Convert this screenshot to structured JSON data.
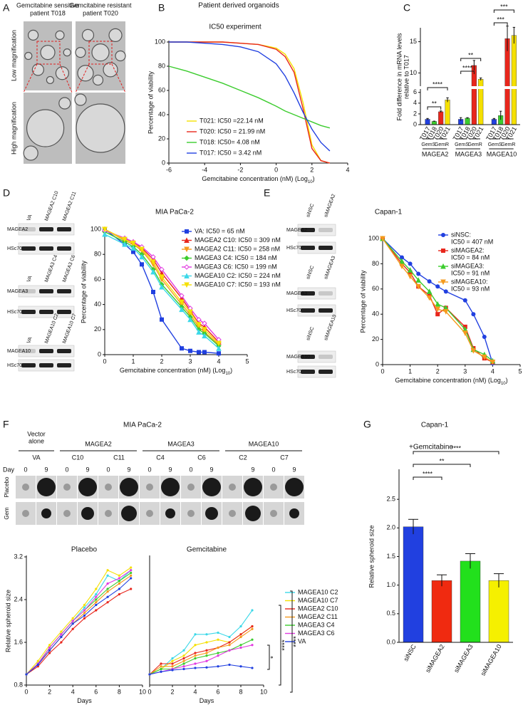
{
  "figure": {
    "panels": [
      "A",
      "B",
      "C",
      "D",
      "E",
      "F",
      "G"
    ],
    "A": {
      "headers": [
        [
          "Gemcitabine sensitive",
          "patient T018"
        ],
        [
          "Gemcitabine resistant",
          "patient T020"
        ]
      ],
      "rows": [
        "Low magnification",
        "High magnification"
      ]
    },
    "B": {
      "title": "Patient derived organoids"
    },
    "D": {
      "blots": [
        {
          "lanes": [
            "VA",
            "MAGEA2 C10",
            "MAGEA2 C11"
          ],
          "bands": [
            "MAGEA2",
            "HSc70"
          ]
        },
        {
          "lanes": [
            "VA",
            "MAGEA3 C4",
            "MAGEA3 C6"
          ],
          "bands": [
            "MAGEA3",
            "HSc70"
          ]
        },
        {
          "lanes": [
            "VA",
            "MAGEA10 C2",
            "MAGEA10 C7"
          ],
          "bands": [
            "MAGEA10",
            "HSc70"
          ]
        }
      ]
    },
    "E": {
      "blots": [
        {
          "lanes": [
            "siNSC",
            "siMAGEA2"
          ],
          "bands": [
            "MAGEA2",
            "HSc70"
          ]
        },
        {
          "lanes": [
            "siNSC",
            "siMAGEA3"
          ],
          "bands": [
            "MAGEA3",
            "HSc70"
          ]
        },
        {
          "lanes": [
            "siNSC",
            "siMAGEA10"
          ],
          "bands": [
            "MAGEA10",
            "HSc70"
          ]
        }
      ]
    },
    "F": {
      "title": "MIA PaCa-2",
      "vector_header": [
        "Vector",
        "alone"
      ],
      "groups": [
        "MAGEA2",
        "MAGEA3",
        "MAGEA10"
      ],
      "clones": [
        "VA",
        "C10",
        "C11",
        "C4",
        "C6",
        "C2",
        "C7"
      ],
      "day_label": "Day",
      "days": [
        "0",
        "9"
      ],
      "rows": [
        "Placebo",
        "Gem"
      ],
      "significance": [
        "*",
        "****",
        "****"
      ]
    }
  },
  "chart_data": [
    {
      "type": "line",
      "title": "IC50 experiment",
      "xlabel": "Gemcitabine concentration (nM) (Log",
      "xlabel_sub": "10",
      "xlabel_end": ")",
      "ylabel": "Percentage of viability",
      "x": [
        -6,
        -5,
        -4,
        -3,
        -2,
        -1,
        0,
        0.5,
        1,
        1.5,
        2,
        2.5,
        3
      ],
      "xlim": [
        -6,
        4
      ],
      "xticks": [
        -6,
        -4,
        -2,
        0,
        2,
        4
      ],
      "ylim": [
        0,
        100
      ],
      "yticks": [
        0,
        20,
        40,
        60,
        80,
        100
      ],
      "series": [
        {
          "name": "T021: IC50 =22.14 nM",
          "color": "#f5e000",
          "values": [
            100,
            100,
            100,
            100,
            99,
            98,
            95,
            90,
            78,
            50,
            15,
            2,
            0
          ]
        },
        {
          "name": "T020: IC50 = 21.99 nM",
          "color": "#e8261c",
          "values": [
            100,
            100,
            100,
            100,
            99,
            98,
            94,
            88,
            75,
            45,
            12,
            2,
            0
          ]
        },
        {
          "name": "T018: IC50= 4.08 nM",
          "color": "#3ccc2e",
          "values": [
            80,
            76,
            71,
            66,
            60,
            54,
            47,
            43,
            40,
            37,
            34,
            31,
            29
          ]
        },
        {
          "name": "T017: IC50 = 3.42 nM",
          "color": "#2140e0",
          "values": [
            100,
            100,
            99,
            98,
            96,
            92,
            82,
            72,
            58,
            42,
            28,
            17,
            10
          ]
        }
      ]
    },
    {
      "type": "bar",
      "ylabel": [
        "Fold difference in mRNA levels",
        "relative to T017"
      ],
      "groups": [
        "MAGEA2",
        "MAGEA3",
        "MAGEA10"
      ],
      "categories": [
        "T017",
        "T018",
        "T020",
        "T021"
      ],
      "subgroups": [
        "GemS",
        "GemR"
      ],
      "colors": [
        "#2140e0",
        "#3ccc2e",
        "#e8261c",
        "#f5e000"
      ],
      "values": [
        [
          1.0,
          0.6,
          2.4,
          4.6
        ],
        [
          1.0,
          1.2,
          11.2,
          9.0
        ],
        [
          1.0,
          1.7,
          15.5,
          16.0
        ]
      ],
      "errors": [
        [
          0.15,
          0.05,
          0.15,
          0.4
        ],
        [
          0.3,
          0.1,
          0.8,
          0.2
        ],
        [
          0.15,
          0.8,
          2.0,
          1.3
        ]
      ],
      "ylim": [
        0,
        17
      ],
      "ybreak": [
        6.5,
        8
      ],
      "yticks": [
        0,
        2,
        4,
        6,
        10,
        15
      ],
      "annotations": [
        "**",
        "****",
        "**",
        "****",
        "***",
        "***"
      ]
    },
    {
      "type": "line",
      "title": "MIA PaCa-2",
      "xlabel": "Gemcitabine concentration (nM) (Log",
      "xlabel_sub": "10",
      "xlabel_end": ")",
      "ylabel": "Percentage of viability",
      "x": [
        0,
        0.7,
        1,
        1.3,
        1.7,
        2,
        2.7,
        3,
        3.3,
        3.5,
        4
      ],
      "xlim": [
        0,
        5
      ],
      "xticks": [
        0,
        1,
        2,
        3,
        4,
        5
      ],
      "ylim": [
        0,
        100
      ],
      "yticks": [
        0,
        20,
        40,
        60,
        80,
        100
      ],
      "series": [
        {
          "name": "VA: IC50 = 65 nM",
          "color": "#2140e0",
          "marker": "square",
          "values": [
            100,
            88,
            82,
            72,
            50,
            28,
            5,
            3,
            2,
            2,
            1
          ]
        },
        {
          "name": "MAGEA2 C10: IC50 = 309 nM",
          "color": "#e8261c",
          "marker": "triangle",
          "values": [
            100,
            92,
            90,
            85,
            76,
            65,
            45,
            35,
            25,
            22,
            10
          ]
        },
        {
          "name": "MAGEA2 C11: IC50 = 258 nM",
          "color": "#f59a1c",
          "marker": "triangle-down",
          "values": [
            100,
            91,
            88,
            83,
            72,
            60,
            40,
            32,
            22,
            18,
            8
          ]
        },
        {
          "name": "MAGEA3 C4: IC50 = 184 nM",
          "color": "#3ccc2e",
          "marker": "diamond",
          "values": [
            98,
            90,
            86,
            80,
            68,
            56,
            38,
            30,
            20,
            17,
            7
          ]
        },
        {
          "name": "MAGEA3 C6: IC50 = 199 nM",
          "color": "#e23be0",
          "marker": "diamond-open",
          "values": [
            99,
            93,
            90,
            86,
            78,
            68,
            47,
            37,
            28,
            25,
            12
          ]
        },
        {
          "name": "MAGEA10 C2: IC50 = 224 nM",
          "color": "#3cd8e8",
          "marker": "triangle",
          "values": [
            96,
            88,
            85,
            78,
            66,
            54,
            36,
            28,
            18,
            15,
            5
          ]
        },
        {
          "name": "MAGEA10 C7: IC50 = 193 nM",
          "color": "#f5e000",
          "marker": "triangle-down",
          "values": [
            100,
            92,
            89,
            84,
            74,
            62,
            42,
            34,
            24,
            20,
            9
          ]
        }
      ]
    },
    {
      "type": "line",
      "title": "Capan-1",
      "xlabel": "Gemcitabine concentration (nM) (Log",
      "xlabel_sub": "10",
      "xlabel_end": ")",
      "ylabel": "Percentage of viability",
      "x": [
        0,
        0.7,
        1,
        1.3,
        1.7,
        2,
        2.3,
        3,
        3.3,
        3.7,
        4
      ],
      "xlim": [
        0,
        5
      ],
      "xticks": [
        0,
        1,
        2,
        3,
        4,
        5
      ],
      "ylim": [
        0,
        100
      ],
      "yticks": [
        0,
        20,
        40,
        60,
        80,
        100
      ],
      "series": [
        {
          "name": [
            "siNSC:",
            "IC50 = 407 nM"
          ],
          "color": "#2140e0",
          "marker": "circle",
          "values": [
            100,
            85,
            80,
            72,
            66,
            62,
            58,
            51,
            40,
            22,
            1
          ]
        },
        {
          "name": [
            "siMAGEA2:",
            "IC50 = 84 nM"
          ],
          "color": "#e8261c",
          "marker": "square",
          "values": [
            100,
            80,
            73,
            62,
            55,
            40,
            45,
            30,
            13,
            5,
            2
          ]
        },
        {
          "name": [
            "siMAGEA3:",
            "IC50 = 91 nM"
          ],
          "color": "#3ccc2e",
          "marker": "triangle",
          "values": [
            100,
            82,
            75,
            67,
            58,
            48,
            45,
            28,
            12,
            8,
            3
          ]
        },
        {
          "name": [
            "siMAGEA10:",
            "IC50 = 93 nM"
          ],
          "color": "#f59a1c",
          "marker": "triangle-down",
          "values": [
            100,
            78,
            70,
            62,
            53,
            44,
            42,
            25,
            11,
            6,
            2
          ]
        }
      ]
    },
    {
      "type": "line",
      "title": "Placebo",
      "xlabel": "Days",
      "ylabel": "Relative spheroid size",
      "x": [
        0,
        1,
        2,
        3,
        4,
        5,
        6,
        7,
        8,
        9
      ],
      "xlim": [
        0,
        10
      ],
      "xticks": [
        0,
        2,
        4,
        6,
        8,
        10
      ],
      "ylim": [
        0.8,
        3.2
      ],
      "yticks": [
        0.8,
        1.6,
        2.4,
        3.2
      ],
      "series": [
        {
          "name": "MAGEA10 C2",
          "color": "#3cd8e8",
          "values": [
            1.0,
            1.2,
            1.5,
            1.75,
            2.0,
            2.25,
            2.5,
            2.85,
            2.75,
            2.95
          ]
        },
        {
          "name": "MAGEA10 C7",
          "color": "#f5e000",
          "values": [
            1.0,
            1.25,
            1.55,
            1.8,
            2.05,
            2.3,
            2.6,
            2.95,
            2.85,
            3.0
          ]
        },
        {
          "name": "MAGEA2 C10",
          "color": "#e8261c",
          "values": [
            1.0,
            1.15,
            1.4,
            1.6,
            1.85,
            2.05,
            2.2,
            2.35,
            2.5,
            2.6
          ]
        },
        {
          "name": "MAGEA2 C11",
          "color": "#f59a1c",
          "values": [
            1.0,
            1.2,
            1.45,
            1.7,
            1.95,
            2.15,
            2.35,
            2.55,
            2.7,
            2.85
          ]
        },
        {
          "name": "MAGEA3 C4",
          "color": "#3ccc2e",
          "values": [
            1.0,
            1.2,
            1.5,
            1.75,
            2.0,
            2.2,
            2.4,
            2.6,
            2.75,
            2.9
          ]
        },
        {
          "name": "MAGEA3 C6",
          "color": "#e23be0",
          "values": [
            1.0,
            1.2,
            1.5,
            1.75,
            2.0,
            2.2,
            2.45,
            2.7,
            2.8,
            2.95
          ]
        },
        {
          "name": "VA",
          "color": "#2140e0",
          "values": [
            1.0,
            1.18,
            1.45,
            1.7,
            1.95,
            2.1,
            2.3,
            2.45,
            2.6,
            2.8
          ]
        }
      ]
    },
    {
      "type": "line",
      "title": "Gemcitabine",
      "xlabel": "Days",
      "x": [
        0,
        1,
        2,
        3,
        4,
        5,
        6,
        7,
        8,
        9
      ],
      "xlim": [
        0,
        10
      ],
      "xticks": [
        0,
        2,
        4,
        6,
        8,
        10
      ],
      "ylim": [
        0.8,
        3.2
      ],
      "series": [
        {
          "name": "MAGEA10 C2",
          "color": "#3cd8e8",
          "values": [
            1.0,
            1.1,
            1.3,
            1.45,
            1.75,
            1.75,
            1.78,
            1.7,
            1.9,
            2.2
          ]
        },
        {
          "name": "MAGEA10 C7",
          "color": "#f5e000",
          "values": [
            1.0,
            1.1,
            1.25,
            1.35,
            1.55,
            1.6,
            1.65,
            1.6,
            1.75,
            1.9
          ]
        },
        {
          "name": "MAGEA2 C10",
          "color": "#e8261c",
          "values": [
            1.0,
            1.2,
            1.2,
            1.3,
            1.4,
            1.45,
            1.5,
            1.6,
            1.75,
            1.9
          ]
        },
        {
          "name": "MAGEA2 C11",
          "color": "#f59a1c",
          "values": [
            1.0,
            1.15,
            1.15,
            1.25,
            1.35,
            1.4,
            1.5,
            1.55,
            1.7,
            1.85
          ]
        },
        {
          "name": "MAGEA3 C4",
          "color": "#3ccc2e",
          "values": [
            1.0,
            1.1,
            1.1,
            1.2,
            1.3,
            1.35,
            1.4,
            1.45,
            1.55,
            1.65
          ]
        },
        {
          "name": "MAGEA3 C6",
          "color": "#e23be0",
          "values": [
            1.0,
            1.05,
            1.1,
            1.15,
            1.2,
            1.25,
            1.35,
            1.45,
            1.5,
            1.55
          ]
        },
        {
          "name": "VA",
          "color": "#2140e0",
          "values": [
            1.0,
            1.05,
            1.08,
            1.1,
            1.12,
            1.13,
            1.15,
            1.18,
            1.15,
            1.12
          ]
        }
      ]
    },
    {
      "type": "bar",
      "title": "Capan-1",
      "subtitle": "+Gemcitabine",
      "ylabel": "Relative spheroid size",
      "categories": [
        "siNSC",
        "siMAGEA2",
        "siMAGEA3",
        "siMAGEA10"
      ],
      "colors": [
        "#2140e0",
        "#f02a10",
        "#22e01c",
        "#f5f000"
      ],
      "values": [
        2.02,
        1.08,
        1.42,
        1.08
      ],
      "errors": [
        0.13,
        0.1,
        0.13,
        0.12
      ],
      "ylim": [
        0,
        3
      ],
      "yticks": [
        {
          "value": 0,
          "label": "0.0"
        },
        0.5,
        {
          "value": 1,
          "label": "1.0"
        },
        1.5,
        {
          "value": 2,
          "label": "2.0"
        },
        2.5
      ],
      "annotations": [
        "****",
        "**",
        "****"
      ]
    }
  ]
}
